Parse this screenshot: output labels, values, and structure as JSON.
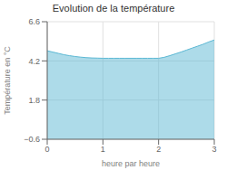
{
  "chart_data": {
    "type": "area",
    "title": "Evolution de la température",
    "x_label": "heure par heure",
    "y_label": "Température en °C",
    "x": [
      0,
      0.1,
      0.2,
      0.3,
      0.4,
      0.5,
      0.6,
      0.7,
      0.8,
      0.9,
      1.0,
      1.1,
      1.2,
      1.3,
      1.4,
      1.5,
      1.6,
      1.7,
      1.8,
      1.9,
      2.0,
      2.1,
      2.2,
      2.3,
      2.4,
      2.5,
      2.6,
      2.7,
      2.8,
      2.9,
      3.0
    ],
    "values": [
      4.82,
      4.74,
      4.66,
      4.58,
      4.52,
      4.47,
      4.43,
      4.4,
      4.38,
      4.37,
      4.36,
      4.36,
      4.36,
      4.36,
      4.36,
      4.36,
      4.36,
      4.36,
      4.36,
      4.36,
      4.36,
      4.42,
      4.52,
      4.63,
      4.74,
      4.86,
      4.98,
      5.1,
      5.22,
      5.36,
      5.48
    ],
    "color": "#5bb8d4",
    "xlim": [
      0,
      3
    ],
    "ylim": [
      -0.6,
      6.6
    ],
    "xticks": [
      0,
      1,
      2,
      3
    ],
    "yticks": [
      {
        "value": -0.6,
        "label": "−0.6"
      },
      1.8,
      4.2,
      6.6
    ],
    "grid": true
  }
}
